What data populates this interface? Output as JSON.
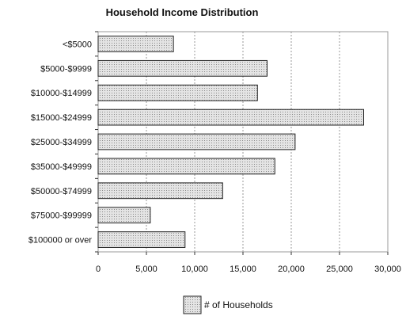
{
  "chart_data": {
    "type": "bar",
    "orientation": "horizontal",
    "title": "Household Income Distribution",
    "categories": [
      "<$5000",
      "$5000-$9999",
      "$10000-$14999",
      "$15000-$24999",
      "$25000-$34999",
      "$35000-$49999",
      "$50000-$74999",
      "$75000-$99999",
      "$100000 or over"
    ],
    "series": [
      {
        "name": "# of Households",
        "values": [
          7800,
          17500,
          16500,
          27500,
          20400,
          18300,
          12900,
          5400,
          9000
        ]
      }
    ],
    "xlim": [
      0,
      30000
    ],
    "xticks": [
      0,
      5000,
      10000,
      15000,
      20000,
      25000,
      30000
    ],
    "xtick_labels": [
      "0",
      "5,000",
      "10,000",
      "15,000",
      "20,000",
      "25,000",
      "30,000"
    ],
    "grid": true,
    "legend": "bottom",
    "colors": {
      "bar_fill": "#d9d9d9",
      "bar_stroke": "#222222",
      "grid": "#9a9a9a"
    }
  }
}
